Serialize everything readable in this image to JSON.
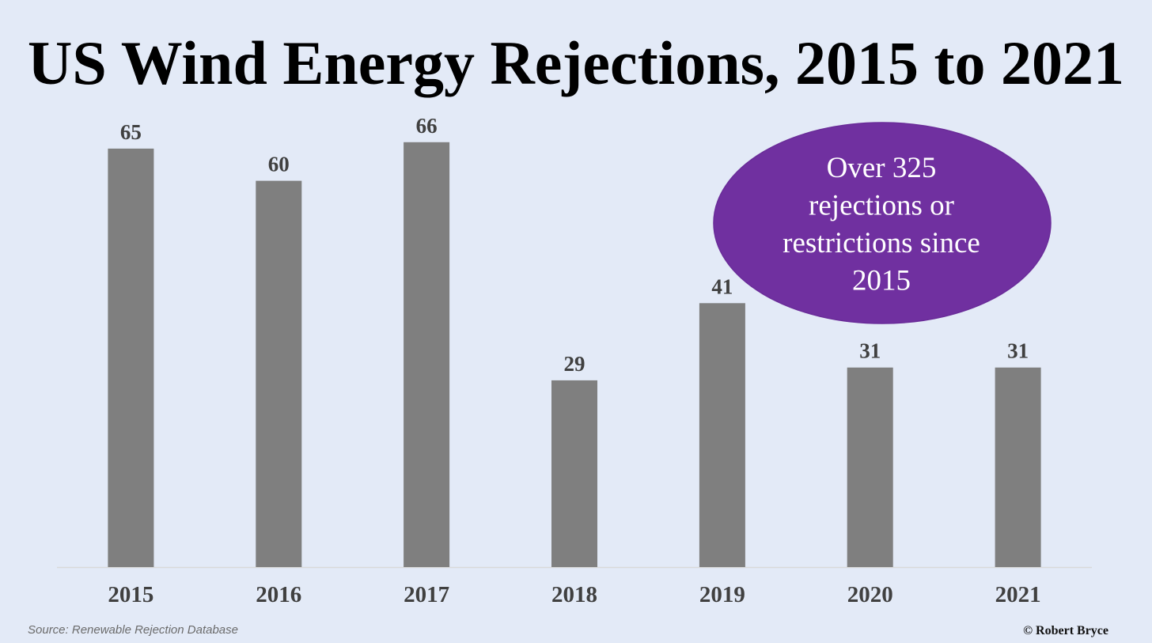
{
  "chart_data": {
    "type": "bar",
    "title": "US Wind Energy Rejections, 2015 to 2021",
    "categories": [
      "2015",
      "2016",
      "2017",
      "2018",
      "2019",
      "2020",
      "2021"
    ],
    "values": [
      65,
      60,
      66,
      29,
      41,
      31,
      31
    ],
    "xlabel": "",
    "ylabel": "",
    "ylim": [
      0,
      66
    ],
    "grid": false,
    "data_labels": true,
    "bar_color": "#7f7f7f",
    "annotation": {
      "text": "Over 325 rejections or restrictions since 2015",
      "lines": [
        "Over 325",
        "rejections or",
        "restrictions since",
        "2015"
      ],
      "fill_color": "#7030a0",
      "text_color": "#ffffff"
    }
  },
  "footer": {
    "source": "Source: Renewable Rejection Database",
    "copyright": "© Robert Bryce"
  },
  "colors": {
    "background": "#e3eaf7",
    "axis_line": "#d9d9d9",
    "label_text": "#404040"
  }
}
